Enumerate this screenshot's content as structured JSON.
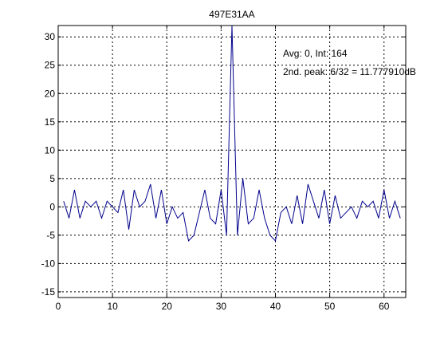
{
  "chart_data": {
    "type": "line",
    "title": "497E31AA",
    "xlabel": "",
    "ylabel": "",
    "xlim": [
      0,
      64
    ],
    "ylim": [
      -16,
      32
    ],
    "grid": true,
    "x_ticks": [
      0,
      10,
      20,
      30,
      40,
      50,
      60
    ],
    "y_ticks": [
      -15,
      -10,
      -5,
      0,
      5,
      10,
      15,
      20,
      25,
      30
    ],
    "x_tick_labels": [
      "0",
      "10",
      "20",
      "30",
      "40",
      "50",
      "60"
    ],
    "y_tick_labels": [
      "-15",
      "-10",
      "-5",
      "0",
      "5",
      "10",
      "15",
      "20",
      "25",
      "30"
    ],
    "annotations": [
      "Avg: 0, Int: 164",
      "2nd. peak: 6/32 = 11.777910dB"
    ],
    "series": [
      {
        "color": "#00008b",
        "x": [
          1,
          2,
          3,
          4,
          5,
          6,
          7,
          8,
          9,
          10,
          11,
          12,
          13,
          14,
          15,
          16,
          17,
          18,
          19,
          20,
          21,
          22,
          23,
          24,
          25,
          26,
          27,
          28,
          29,
          30,
          31,
          32,
          33,
          34,
          35,
          36,
          37,
          38,
          39,
          40,
          41,
          42,
          43,
          44,
          45,
          46,
          47,
          48,
          49,
          50,
          51,
          52,
          53,
          54,
          55,
          56,
          57,
          58,
          59,
          60,
          61,
          62,
          63
        ],
        "y": [
          1,
          -2,
          3,
          -2,
          1,
          0,
          1,
          -2,
          1,
          0,
          -1,
          3,
          -4,
          3,
          0,
          1,
          4,
          -2,
          3,
          -3,
          0,
          -2,
          -1,
          -6,
          -5,
          -1,
          3,
          -2,
          -3,
          3,
          -5,
          32,
          -5,
          5,
          -3,
          -2,
          3,
          -2,
          -5,
          -6,
          -1,
          0,
          -3,
          2,
          -3,
          4,
          1,
          -2,
          3,
          -3,
          2,
          -2,
          -1,
          0,
          -2,
          1,
          0,
          1,
          -2,
          3,
          -2,
          1,
          -2
        ]
      }
    ]
  }
}
